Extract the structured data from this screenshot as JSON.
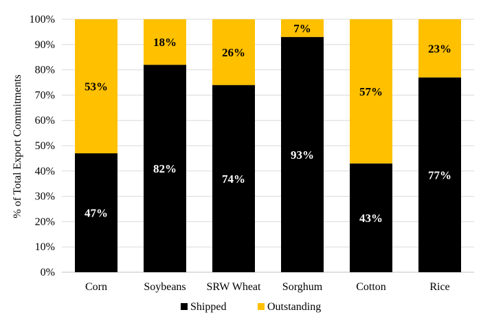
{
  "chart_data": {
    "type": "bar",
    "stacked": true,
    "categories": [
      "Corn",
      "Soybeans",
      "SRW Wheat",
      "Sorghum",
      "Cotton",
      "Rice"
    ],
    "series": [
      {
        "name": "Shipped",
        "values": [
          47,
          82,
          74,
          93,
          43,
          77
        ],
        "labels": [
          "47%",
          "82%",
          "74%",
          "93%",
          "43%",
          "77%"
        ],
        "color": "#000000",
        "label_color": "#ffffff"
      },
      {
        "name": "Outstanding",
        "values": [
          53,
          18,
          26,
          7,
          57,
          23
        ],
        "labels": [
          "53%",
          "18%",
          "26%",
          "7%",
          "57%",
          "23%"
        ],
        "color": "#ffc000",
        "label_color": "#000000"
      }
    ],
    "ylabel": "% of Total Export Commitments",
    "ylim": [
      0,
      100
    ],
    "yticks": [
      "0%",
      "10%",
      "20%",
      "30%",
      "40%",
      "50%",
      "60%",
      "70%",
      "80%",
      "90%",
      "100%"
    ],
    "grid": true,
    "legend": "bottom"
  }
}
